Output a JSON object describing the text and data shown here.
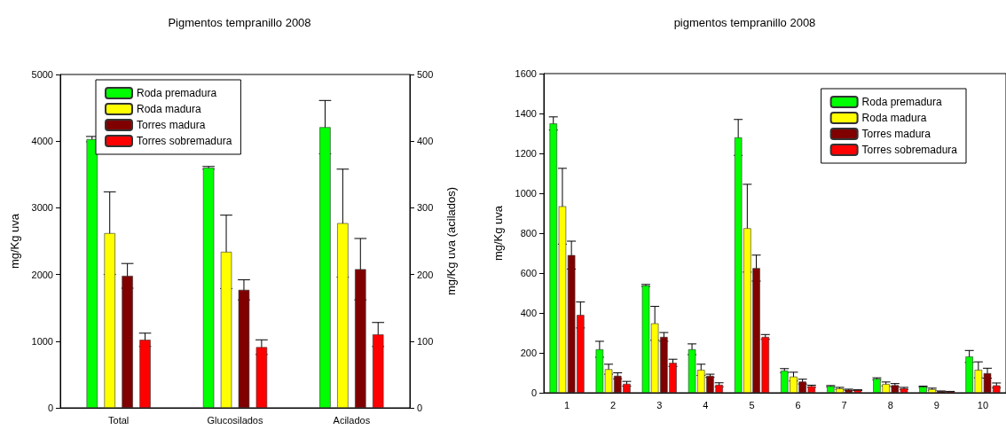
{
  "chart_data": [
    {
      "type": "bar",
      "title": "Pigmentos tempranillo 2008",
      "ylabel": "mg/Kg uva",
      "y2label": "mg/Kg uva (acilados)",
      "categories": [
        "Total",
        "Glucosilados",
        "Acilados"
      ],
      "ylim": [
        0,
        5000
      ],
      "yticks": [
        0,
        1000,
        2000,
        3000,
        4000,
        5000
      ],
      "y2lim": [
        0,
        500
      ],
      "y2ticks": [
        0,
        100,
        200,
        300,
        400,
        500
      ],
      "legend": "top left",
      "series": [
        {
          "name": "Roda premadura",
          "color": "#00ff00",
          "values": [
            4030,
            3600,
            null
          ],
          "errors": [
            40,
            20,
            null
          ]
        },
        {
          "name": "Roda madura",
          "color": "#ffff00",
          "values": [
            2620,
            2340,
            null
          ],
          "errors": [
            620,
            550,
            null
          ]
        },
        {
          "name": "Torres madura",
          "color": "#800000",
          "values": [
            1980,
            1770,
            null
          ],
          "errors": [
            185,
            150,
            null
          ]
        },
        {
          "name": "Torres sobremadura",
          "color": "#ff0000",
          "values": [
            1020,
            910,
            null
          ],
          "errors": [
            100,
            110,
            null
          ]
        },
        {
          "color": "#00ff00",
          "axis": "y2",
          "values": [
            null,
            null,
            421
          ],
          "errors": [
            null,
            null,
            40
          ]
        },
        {
          "color": "#ffff00",
          "axis": "y2",
          "values": [
            null,
            null,
            277
          ],
          "errors": [
            null,
            null,
            81
          ]
        },
        {
          "color": "#800000",
          "axis": "y2",
          "values": [
            null,
            null,
            208
          ],
          "errors": [
            null,
            null,
            46
          ]
        },
        {
          "color": "#ff0000",
          "axis": "y2",
          "values": [
            null,
            null,
            110
          ],
          "errors": [
            null,
            null,
            18
          ]
        }
      ]
    },
    {
      "type": "bar",
      "title": "pigmentos tempranillo 2008",
      "ylabel": "mg/Kg uva",
      "categories": [
        "1",
        "2",
        "3",
        "4",
        "5",
        "6",
        "7",
        "8",
        "9",
        "10"
      ],
      "ylim": [
        0,
        1600
      ],
      "yticks": [
        0,
        200,
        400,
        600,
        800,
        1000,
        1200,
        1400,
        1600
      ],
      "legend": "top right",
      "series": [
        {
          "name": "Roda premadura",
          "color": "#00ff00",
          "values": [
            1350,
            218,
            538,
            218,
            1280,
            111,
            33,
            70,
            30,
            182
          ],
          "errors": [
            33,
            40,
            5,
            27,
            90,
            10,
            3,
            5,
            3,
            30
          ]
        },
        {
          "name": "Roda madura",
          "color": "#ffff00",
          "values": [
            935,
            118,
            348,
            115,
            825,
            81,
            22,
            44,
            18,
            115
          ],
          "errors": [
            190,
            25,
            85,
            28,
            220,
            22,
            5,
            10,
            5,
            40
          ]
        },
        {
          "name": "Torres madura",
          "color": "#800000",
          "values": [
            690,
            85,
            280,
            85,
            625,
            56,
            15,
            38,
            7,
            98
          ],
          "errors": [
            70,
            15,
            22,
            8,
            65,
            12,
            3,
            8,
            2,
            25
          ]
        },
        {
          "name": "Torres sobremadura",
          "color": "#ff0000",
          "values": [
            390,
            45,
            150,
            40,
            280,
            33,
            13,
            22,
            6,
            37
          ],
          "errors": [
            65,
            12,
            18,
            10,
            12,
            5,
            2,
            5,
            1,
            12
          ]
        }
      ]
    }
  ]
}
